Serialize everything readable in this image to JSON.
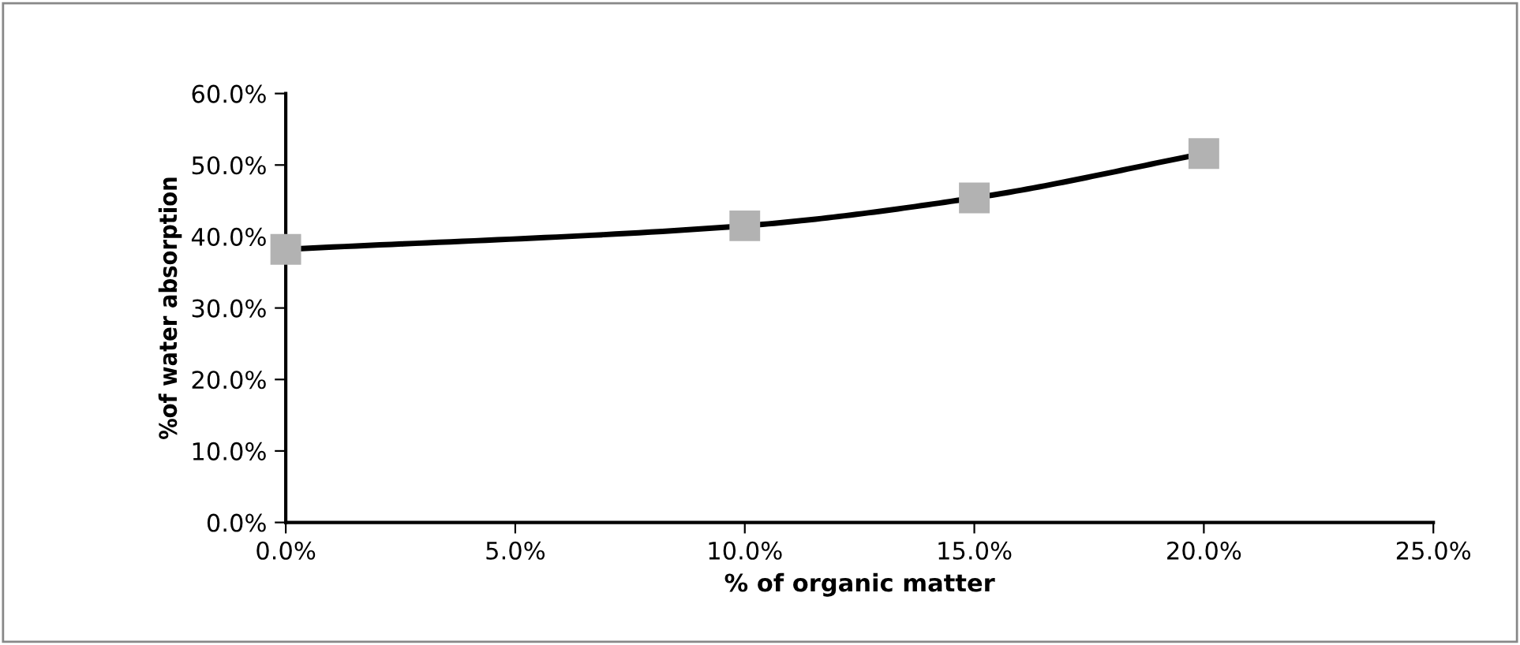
{
  "chart_data": {
    "type": "line",
    "xlabel": "% of organic matter",
    "ylabel": "%of water absorption",
    "x": [
      0,
      10,
      15,
      20
    ],
    "series": [
      {
        "color": "#000000",
        "colors": [
          "#b2b2b2",
          "#b2b2b2",
          "#b2b2b2",
          "#b2b2b2"
        ],
        "values": [
          38.2,
          41.5,
          45.4,
          51.6
        ]
      }
    ],
    "xlim": [
      0,
      25
    ],
    "xticks": [
      {
        "value": 0,
        "label": "0.0%"
      },
      {
        "value": 5,
        "label": "5.0%"
      },
      {
        "value": 10,
        "label": "10.0%"
      },
      {
        "value": 15,
        "label": "15.0%"
      },
      {
        "value": 20,
        "label": "20.0%"
      },
      {
        "value": 25,
        "label": "25.0%"
      }
    ],
    "ylim": [
      0,
      60
    ],
    "yticks": [
      {
        "value": 0,
        "label": "0.0%"
      },
      {
        "value": 10,
        "label": "10.0%"
      },
      {
        "value": 20,
        "label": "20.0%"
      },
      {
        "value": 30,
        "label": "30.0%"
      },
      {
        "value": 40,
        "label": "40.0%"
      },
      {
        "value": 50,
        "label": "50.0%"
      },
      {
        "value": 60,
        "label": "60.0%"
      }
    ],
    "marker": "square",
    "line_style": "solid",
    "grid": false,
    "legend": false
  }
}
